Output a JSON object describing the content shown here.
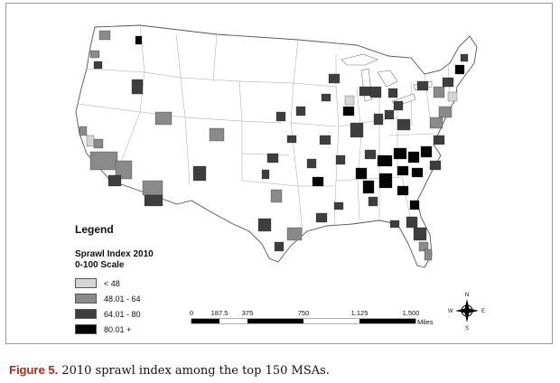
{
  "legend": {
    "title": "Legend",
    "subtitle": "Sprawl Index 2010",
    "scale_label": "0-100 Scale",
    "classes": [
      {
        "label": "< 48",
        "color": "#d6d6d6"
      },
      {
        "label": "48.01 - 64",
        "color": "#8a8a8a"
      },
      {
        "label": "64.01 - 80",
        "color": "#3e3e3e"
      },
      {
        "label": "80.01 +",
        "color": "#050505"
      }
    ]
  },
  "scalebar": {
    "ticks": [
      "0",
      "187.5",
      "375",
      "750",
      "1,125",
      "1,500"
    ],
    "unit": "Miles"
  },
  "compass": {
    "n": "N",
    "s": "S",
    "e": "E",
    "w": "W"
  },
  "caption": {
    "label": "Figure 5.",
    "text": " 2010 sprawl index among the top 150 MSAs."
  }
}
